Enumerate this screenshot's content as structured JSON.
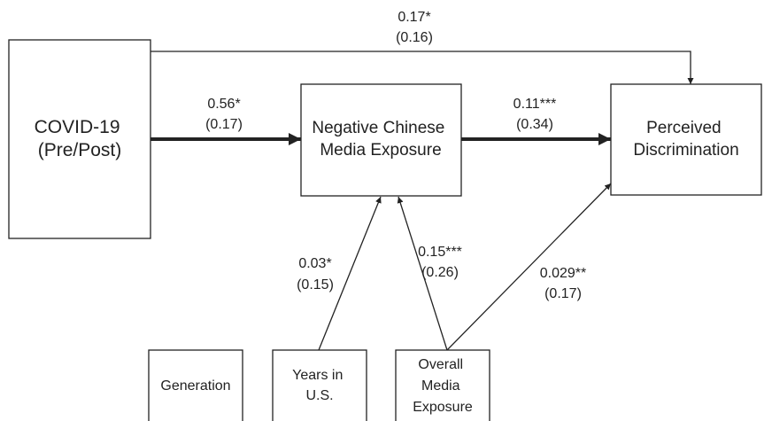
{
  "nodes": {
    "covid": {
      "lines": [
        "COVID-19",
        "(Pre/Post)"
      ]
    },
    "media": {
      "lines": [
        "Negative Chinese",
        "Media Exposure"
      ]
    },
    "perceived": {
      "lines": [
        "Perceived",
        "Discrimination"
      ]
    },
    "generation": {
      "lines": [
        "Generation"
      ]
    },
    "years": {
      "lines": [
        "Years in",
        "U.S."
      ]
    },
    "overall": {
      "lines": [
        "Overall",
        "Media",
        "Exposure"
      ]
    }
  },
  "paths": {
    "covid_to_perceived": {
      "coef": "0.17*",
      "se": "(0.16)"
    },
    "covid_to_media": {
      "coef": "0.56*",
      "se": "(0.17)"
    },
    "media_to_perceived": {
      "coef": "0.11***",
      "se": "(0.34)"
    },
    "years_to_media": {
      "coef": "0.03*",
      "se": "(0.15)"
    },
    "overall_to_media": {
      "coef": "0.15***",
      "se": "(0.26)"
    },
    "overall_to_perceived": {
      "coef": "0.029**",
      "se": "(0.17)"
    }
  },
  "colors": {
    "line": "#222222",
    "background": "#ffffff"
  }
}
